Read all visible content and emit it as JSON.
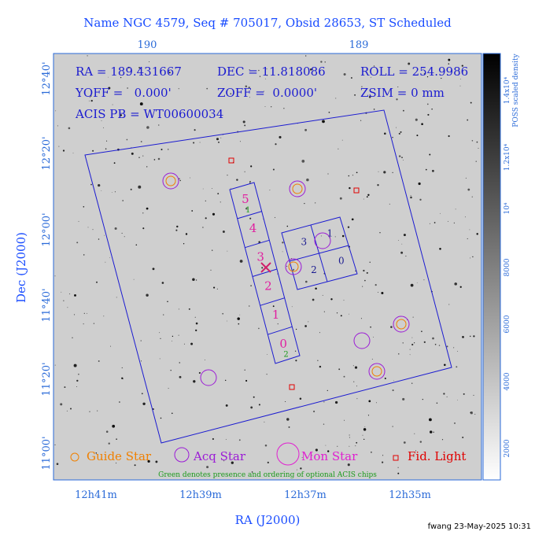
{
  "header": {
    "title": "Name NGC 4579, Seq # 705017, Obsid 28653, ST Scheduled"
  },
  "top_axis": {
    "labels": [
      "190",
      "189"
    ]
  },
  "left_axis": {
    "title": "Dec (J2000)",
    "labels": [
      "12°40'",
      "12°20'",
      "12°00'",
      "11°40'",
      "11°20'",
      "11°00'"
    ]
  },
  "bottom_axis": {
    "title": "RA (J2000)",
    "labels": [
      "12h41m",
      "12h39m",
      "12h37m",
      "12h35m"
    ]
  },
  "colorbar": {
    "title": "POSS scaled density",
    "labels": [
      "2000",
      "4000",
      "6000",
      "8000",
      "10⁴",
      "1.2x10⁴",
      "1.4x10⁴"
    ]
  },
  "info": {
    "ra": "RA = 189.431667",
    "dec": "DEC = 11.818086",
    "roll": "ROLL = 254.9986",
    "yoff": "YOFF =   0.000'",
    "zoff": "ZOFF =  0.0000'",
    "zsim": "ZSIM = 0 mm",
    "acis": "ACIS PB = WT00600034"
  },
  "acis_s": {
    "chips": [
      "5",
      "4",
      "3",
      "2",
      "1",
      "0"
    ],
    "optional": [
      "1",
      "2"
    ]
  },
  "acis_i": {
    "chips": [
      "3",
      "1",
      "2",
      "0"
    ]
  },
  "legend": {
    "guide": "Guide Star",
    "acq": "Acq Star",
    "mon": "Mon Star",
    "fid": "Fid. Light",
    "note": "Green denotes presence and ordering of optional ACIS chips"
  },
  "footer": {
    "stamp": "fwang 23-May-2025 10:31"
  }
}
